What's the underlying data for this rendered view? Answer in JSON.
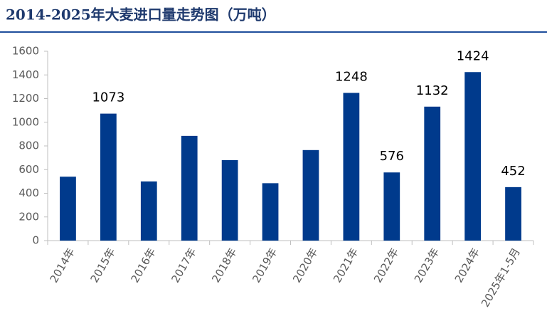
{
  "chart_data": {
    "type": "bar",
    "title": "2014-2025年大麦进口量走势图（万吨）",
    "categories": [
      "2014年",
      "2015年",
      "2016年",
      "2017年",
      "2018年",
      "2019年",
      "2020年",
      "2021年",
      "2022年",
      "2023年",
      "2024年",
      "2025年1-5月"
    ],
    "values": [
      540,
      1073,
      500,
      885,
      680,
      485,
      765,
      1248,
      576,
      1132,
      1424,
      452
    ],
    "value_labels": [
      null,
      "1073",
      null,
      null,
      null,
      null,
      null,
      "1248",
      "576",
      "1132",
      "1424",
      "452"
    ],
    "color": "#003a8c",
    "ylim": [
      0,
      1600
    ],
    "yticks": [
      0,
      200,
      400,
      600,
      800,
      1000,
      1200,
      1400,
      1600
    ],
    "grid": false
  }
}
